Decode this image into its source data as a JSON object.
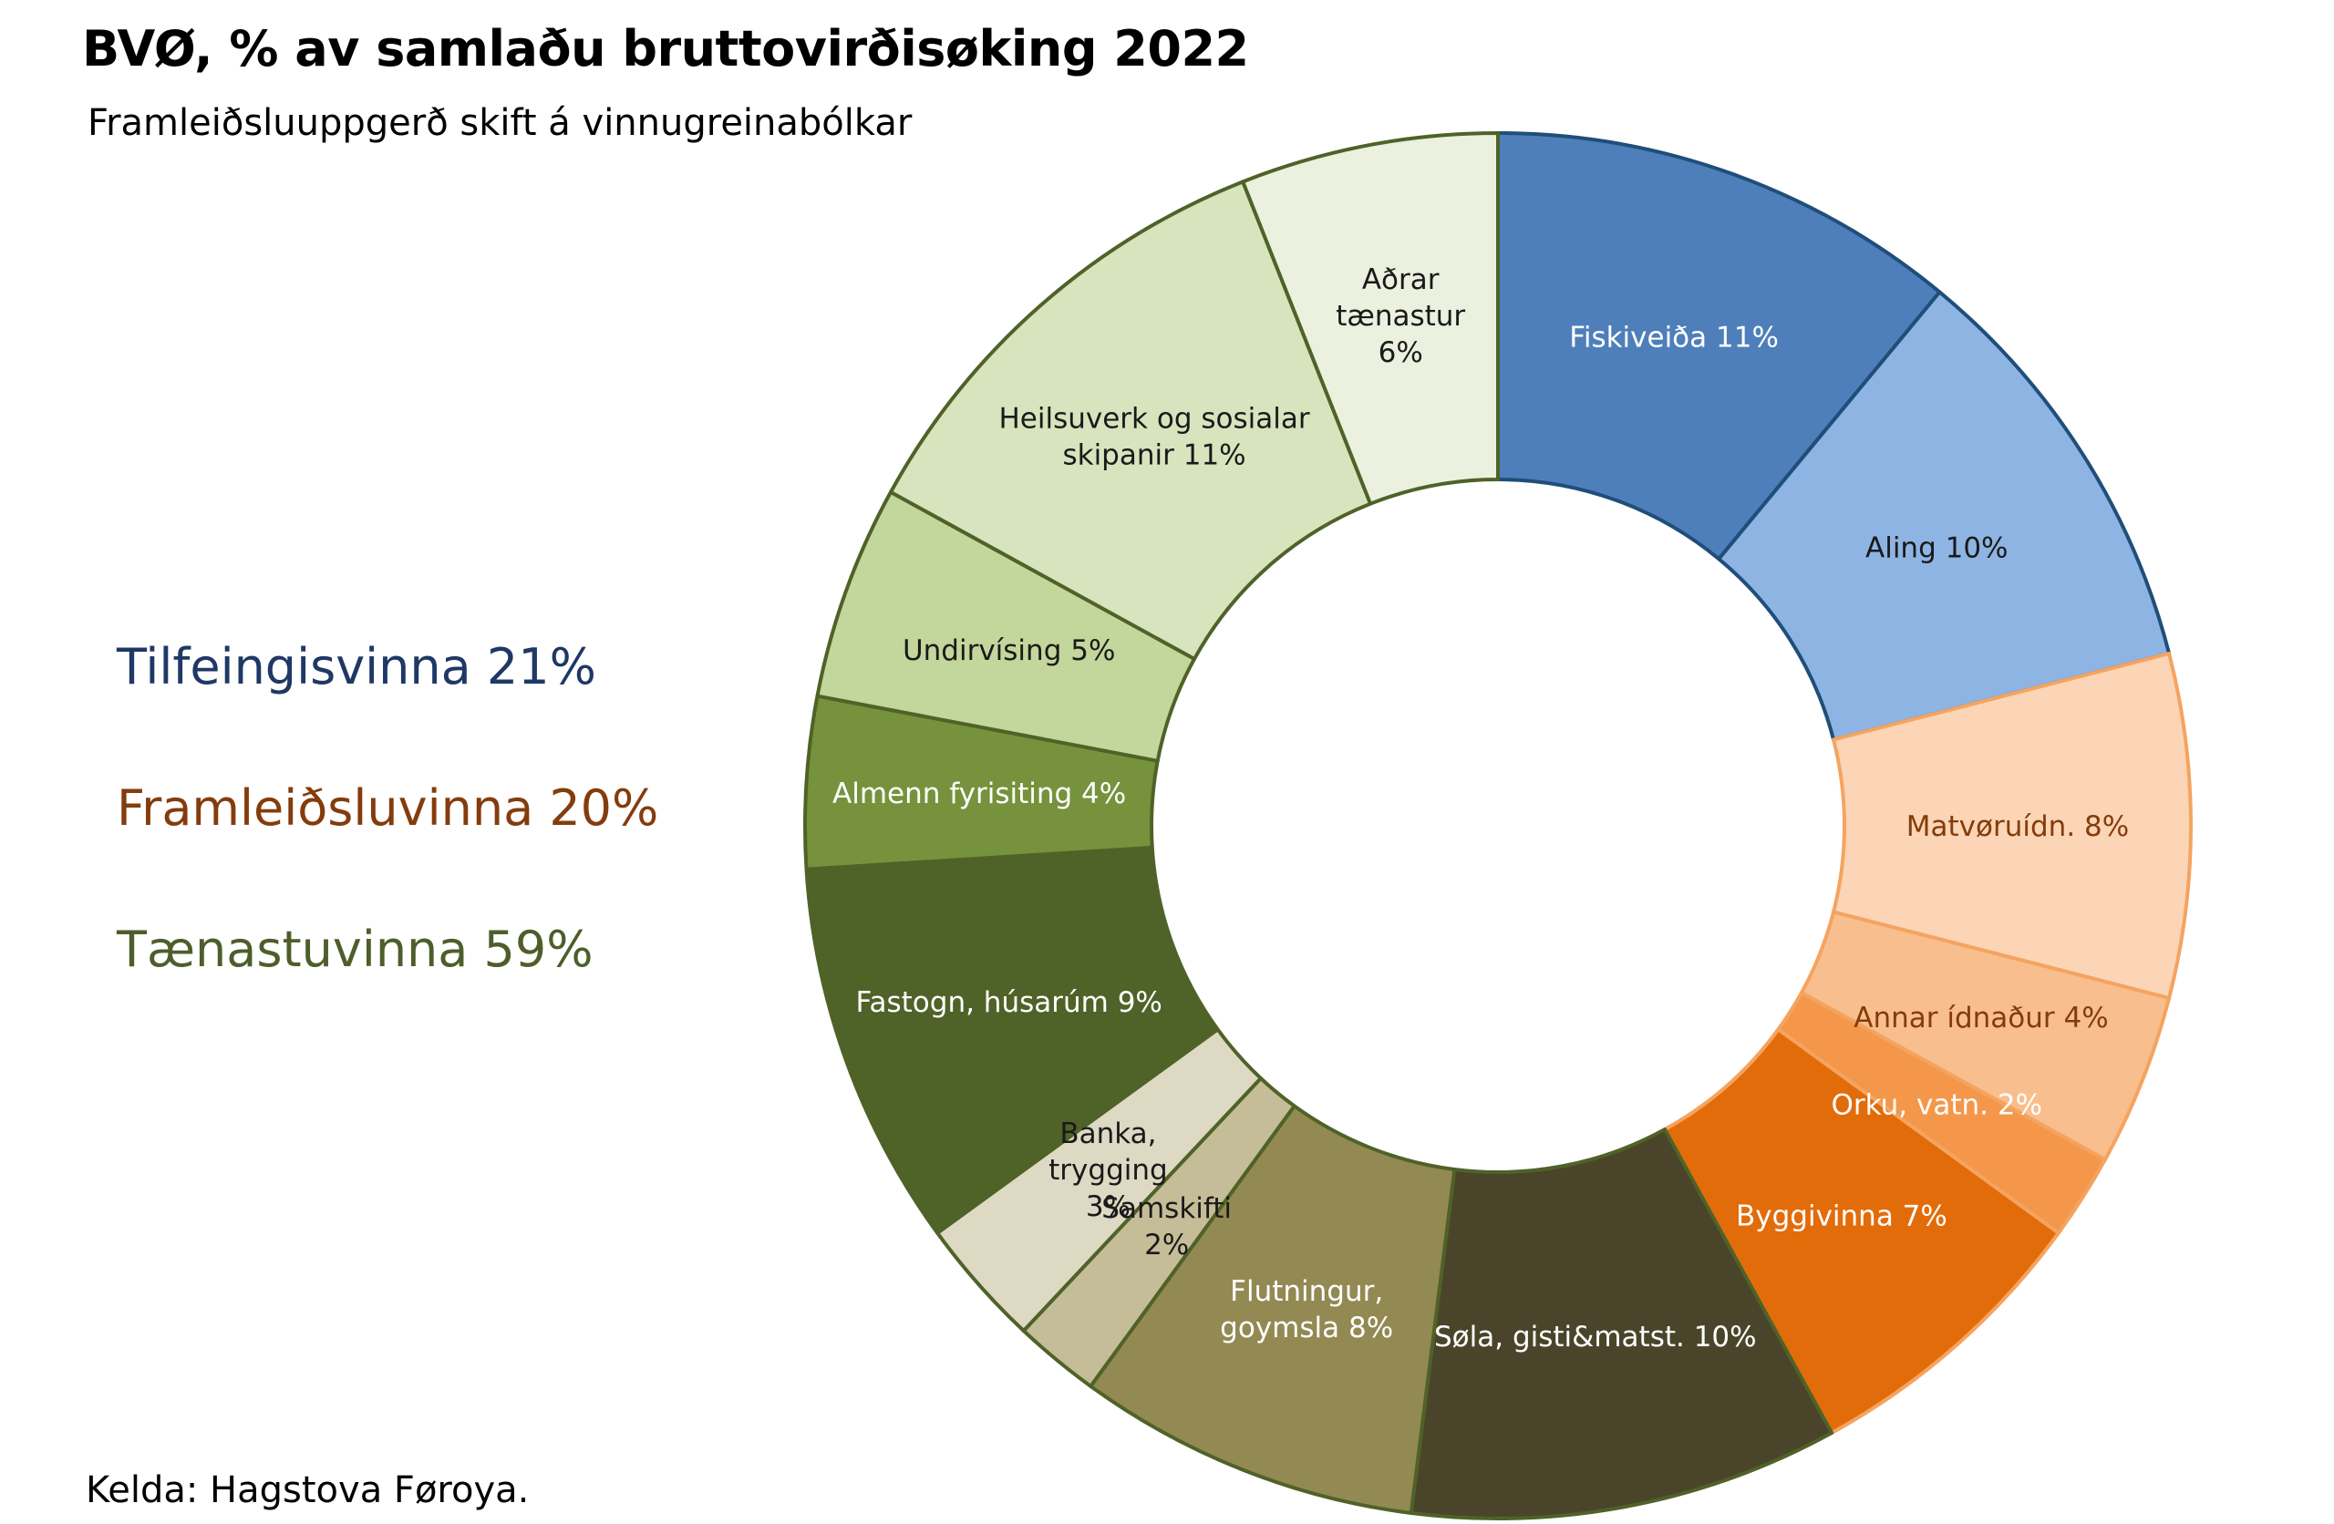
{
  "chart_data": {
    "type": "pie",
    "title": "BVØ, % av samlaðu bruttovirðisøking 2022",
    "subtitle": "Framleiðsluuppgerð skift á vinnugreinabólkar",
    "source": "Kelda: Hagstova Føroya.",
    "groups": [
      {
        "label": "Tilfeingisvinna 21%",
        "color": "#1F3864"
      },
      {
        "label": "Framleiðsluvinna 20%",
        "color": "#843C0C"
      },
      {
        "label": "Tænastuvinna 59%",
        "color": "#4E5E2A"
      }
    ],
    "slices": [
      {
        "name": "Fiskiveiða 11%",
        "value": 11,
        "color": "#4E7FBA",
        "border": "#1F4E79",
        "text_color": "#FFFFFF",
        "lines": [
          "Fiskiveiða 11%"
        ]
      },
      {
        "name": "Aling 10%",
        "value": 10,
        "color": "#8EB4E3",
        "border": "#1F4E79",
        "text_color": "#1A1A1A",
        "lines": [
          "Aling 10%"
        ]
      },
      {
        "name": "Matvøruídn. 8%",
        "value": 8,
        "color": "#FBD5B5",
        "border": "#F4A460",
        "text_color": "#843C0C",
        "lines": [
          "Matvøruídn. 8%"
        ]
      },
      {
        "name": "Annar ídnaður 4%",
        "value": 4,
        "color": "#F9BE8E",
        "border": "#F4A460",
        "text_color": "#843C0C",
        "lines": [
          "Annar ídnaður 4%"
        ]
      },
      {
        "name": "Orku, vatn. 2%",
        "value": 2,
        "color": "#F4974A",
        "border": "#F4A460",
        "text_color": "#FFFFFF",
        "lines": [
          "Orku, vatn. 2%"
        ]
      },
      {
        "name": "Byggivinna 7%",
        "value": 7,
        "color": "#E36C0A",
        "border": "#F4A460",
        "text_color": "#FFFFFF",
        "lines": [
          "Byggivinna 7%"
        ]
      },
      {
        "name": "Søla, gisti&matst. 10%",
        "value": 10,
        "color": "#4A452A",
        "border": "#4F6228",
        "text_color": "#FFFFFF",
        "lines": [
          "Søla, gisti&matst. 10%"
        ]
      },
      {
        "name": "Flutningur, goymsla 8%",
        "value": 8,
        "color": "#938953",
        "border": "#4F6228",
        "text_color": "#FFFFFF",
        "lines": [
          "Flutningur,",
          "goymsla 8%"
        ]
      },
      {
        "name": "Samskifti 2%",
        "value": 2,
        "color": "#C4BD97",
        "border": "#4F6228",
        "text_color": "#1A1A1A",
        "lines": [
          "Samskifti",
          "2%"
        ]
      },
      {
        "name": "Banka, trygging 3%",
        "value": 3,
        "color": "#DDD9C3",
        "border": "#4F6228",
        "text_color": "#1A1A1A",
        "lines": [
          "Banka,",
          "trygging",
          "3%"
        ]
      },
      {
        "name": "Fastogn, húsarúm 9%",
        "value": 9,
        "color": "#4F6228",
        "border": "#4F6228",
        "text_color": "#FFFFFF",
        "lines": [
          "Fastogn, húsarúm 9%"
        ]
      },
      {
        "name": "Almenn fyrisiting 4%",
        "value": 4,
        "color": "#76923C",
        "border": "#4F6228",
        "text_color": "#FFFFFF",
        "lines": [
          "Almenn fyrisiting 4%"
        ]
      },
      {
        "name": "Undirvísing 5%",
        "value": 5,
        "color": "#C3D69B",
        "border": "#4F6228",
        "text_color": "#1A1A1A",
        "lines": [
          "Undirvísing 5%"
        ]
      },
      {
        "name": "Heilsuverk og sosialar skipanir 11%",
        "value": 11,
        "color": "#D7E4BD",
        "border": "#4F6228",
        "text_color": "#1A1A1A",
        "lines": [
          "Heilsuverk og sosialar",
          "skipanir 11%"
        ]
      },
      {
        "name": "Aðrar tænastur 6%",
        "value": 6,
        "color": "#EBF1DE",
        "border": "#4F6228",
        "text_color": "#1A1A1A",
        "lines": [
          "Aðrar",
          "tænastur",
          "6%"
        ]
      }
    ]
  }
}
